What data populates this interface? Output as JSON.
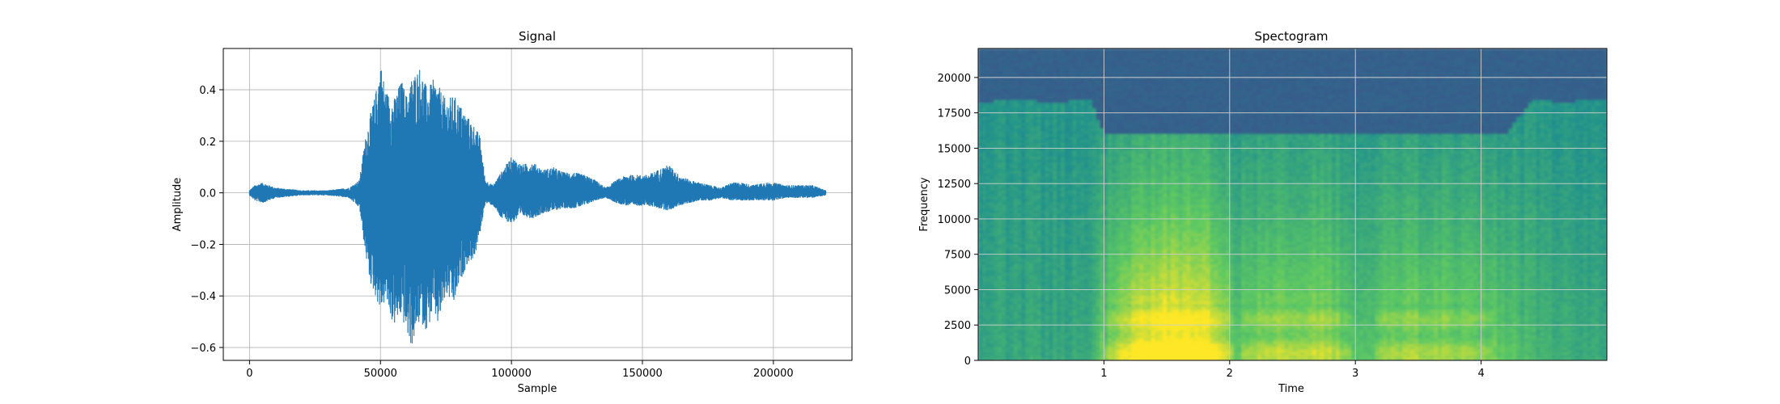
{
  "chart_data": [
    {
      "type": "line",
      "title": "Signal",
      "xlabel": "Sample",
      "ylabel": "Amplitude",
      "xlim": [
        -10000,
        230000
      ],
      "ylim": [
        -0.65,
        0.56
      ],
      "xticks": [
        0,
        50000,
        100000,
        150000,
        200000
      ],
      "xtick_labels": [
        "0",
        "50000",
        "100000",
        "150000",
        "200000"
      ],
      "yticks": [
        -0.6,
        -0.4,
        -0.2,
        0.0,
        0.2,
        0.4
      ],
      "ytick_labels": [
        "−0.6",
        "−0.4",
        "−0.2",
        "0.0",
        "0.2",
        "0.4"
      ],
      "grid": true,
      "series": [
        {
          "color": "#1f77b4",
          "envelope": {
            "x": [
              0,
              2000,
              5000,
              10000,
              20000,
              30000,
              38000,
              42000,
              44000,
              46000,
              48000,
              50000,
              52000,
              55000,
              58000,
              60000,
              62000,
              65000,
              68000,
              70000,
              72000,
              75000,
              78000,
              80000,
              83000,
              86000,
              88000,
              90000,
              93000,
              96000,
              100000,
              104000,
              108000,
              112000,
              116000,
              120000,
              124000,
              128000,
              132000,
              136000,
              140000,
              144000,
              148000,
              152000,
              156000,
              160000,
              164000,
              168000,
              172000,
              176000,
              180000,
              184000,
              188000,
              192000,
              196000,
              200000,
              205000,
              210000,
              215000,
              220000
            ],
            "max": [
              0.01,
              0.03,
              0.04,
              0.02,
              0.01,
              0.01,
              0.02,
              0.05,
              0.2,
              0.3,
              0.38,
              0.51,
              0.4,
              0.36,
              0.44,
              0.38,
              0.45,
              0.49,
              0.4,
              0.44,
              0.42,
              0.36,
              0.38,
              0.35,
              0.3,
              0.26,
              0.22,
              0.05,
              0.03,
              0.08,
              0.14,
              0.11,
              0.12,
              0.09,
              0.1,
              0.08,
              0.08,
              0.07,
              0.05,
              0.02,
              0.05,
              0.07,
              0.07,
              0.07,
              0.09,
              0.11,
              0.07,
              0.05,
              0.04,
              0.03,
              0.02,
              0.04,
              0.04,
              0.03,
              0.04,
              0.04,
              0.03,
              0.03,
              0.03,
              0.01
            ],
            "min": [
              -0.01,
              -0.03,
              -0.04,
              -0.02,
              -0.01,
              -0.01,
              -0.02,
              -0.06,
              -0.22,
              -0.35,
              -0.4,
              -0.46,
              -0.42,
              -0.52,
              -0.48,
              -0.55,
              -0.6,
              -0.5,
              -0.54,
              -0.46,
              -0.52,
              -0.4,
              -0.44,
              -0.36,
              -0.28,
              -0.25,
              -0.16,
              -0.04,
              -0.05,
              -0.1,
              -0.12,
              -0.09,
              -0.1,
              -0.08,
              -0.07,
              -0.06,
              -0.06,
              -0.05,
              -0.03,
              -0.02,
              -0.04,
              -0.05,
              -0.05,
              -0.05,
              -0.06,
              -0.07,
              -0.05,
              -0.04,
              -0.03,
              -0.03,
              -0.02,
              -0.03,
              -0.03,
              -0.03,
              -0.03,
              -0.03,
              -0.02,
              -0.02,
              -0.02,
              -0.01
            ]
          }
        }
      ]
    },
    {
      "type": "heatmap",
      "title": "Spectogram",
      "xlabel": "Time",
      "ylabel": "Frequency",
      "xlim": [
        0,
        5.0
      ],
      "ylim": [
        0,
        22050
      ],
      "xticks": [
        1,
        2,
        3,
        4
      ],
      "xtick_labels": [
        "1",
        "2",
        "3",
        "4"
      ],
      "yticks": [
        0,
        2500,
        5000,
        7500,
        10000,
        12500,
        15000,
        17500,
        20000
      ],
      "ytick_labels": [
        "0",
        "2500",
        "5000",
        "7500",
        "10000",
        "12500",
        "15000",
        "17500",
        "20000"
      ],
      "grid": true,
      "colormap": "viridis",
      "colormap_stops": [
        "#440154",
        "#3b528b",
        "#21918c",
        "#5ec962",
        "#fde725"
      ],
      "spectrum": {
        "times": [
          0.0,
          0.3,
          0.6,
          0.9,
          1.0,
          1.2,
          1.5,
          1.8,
          1.95,
          2.05,
          2.2,
          2.5,
          2.8,
          3.05,
          3.3,
          3.6,
          3.9,
          4.2,
          4.4,
          4.7,
          5.0
        ],
        "cutoff_hz": [
          18300,
          18400,
          18300,
          18400,
          16000,
          16000,
          16000,
          16000,
          16000,
          16000,
          16000,
          16000,
          16000,
          16000,
          16000,
          16000,
          16000,
          16000,
          18400,
          18300,
          18500
        ],
        "energy": [
          0.42,
          0.43,
          0.42,
          0.44,
          0.62,
          0.82,
          0.95,
          0.9,
          0.8,
          0.58,
          0.68,
          0.72,
          0.7,
          0.55,
          0.66,
          0.68,
          0.64,
          0.58,
          0.5,
          0.46,
          0.44
        ]
      }
    }
  ]
}
